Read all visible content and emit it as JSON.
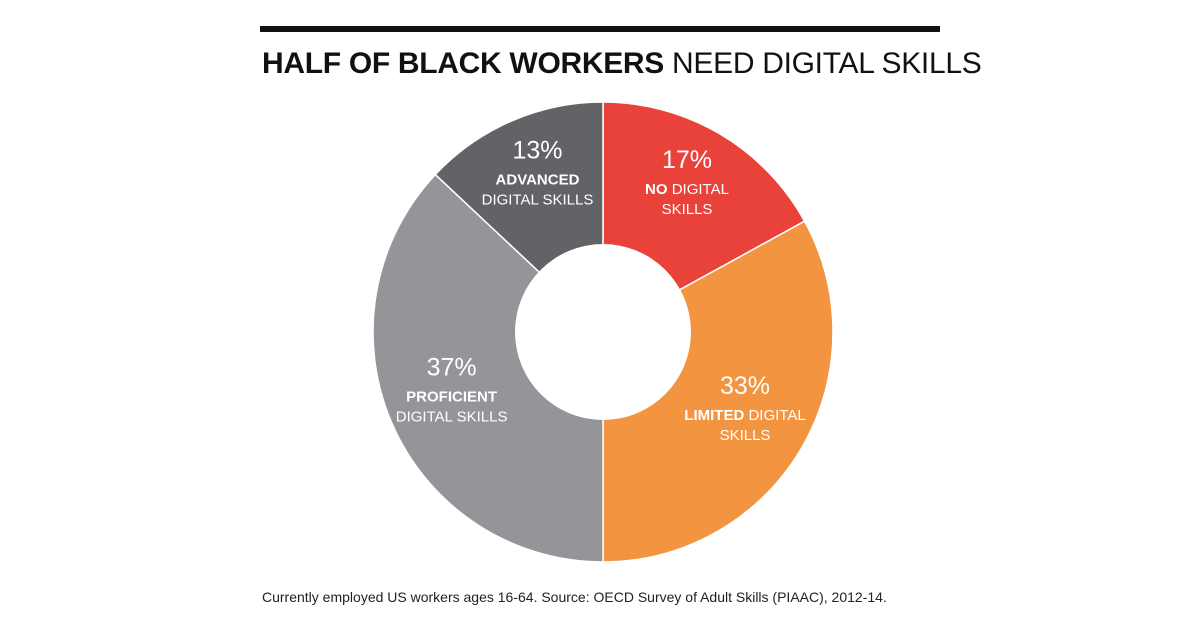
{
  "title": {
    "bold": "HALF OF BLACK WORKERS",
    "regular": "NEED DIGITAL SKILLS"
  },
  "footnote": "Currently employed US workers ages 16-64. Source: OECD Survey of Adult Skills (PIAAC), 2012-14.",
  "colors": {
    "no": "#e8423a",
    "limited": "#f39440",
    "proficient": "#939598",
    "advanced": "#626366",
    "hole": "#ffffff",
    "rule": "#111111"
  },
  "chart_data": {
    "type": "pie",
    "style": "donut",
    "start": "12 o'clock",
    "direction": "clockwise",
    "slices": [
      {
        "value": 17,
        "pct_label": "17%",
        "line1_bold": "NO",
        "line1_regular": " DIGITAL",
        "line2": "SKILLS",
        "color": "#e8423a"
      },
      {
        "value": 33,
        "pct_label": "33%",
        "line1_bold": "LIMITED",
        "line1_regular": " DIGITAL",
        "line2": "SKILLS",
        "color": "#f39440"
      },
      {
        "value": 37,
        "pct_label": "37%",
        "line1_bold": "PROFICIENT",
        "line1_regular": "",
        "line2": "DIGITAL SKILLS",
        "color": "#939598"
      },
      {
        "value": 13,
        "pct_label": "13%",
        "line1_bold": "ADVANCED",
        "line1_regular": "",
        "line2": "DIGITAL SKILLS",
        "color": "#626366"
      }
    ]
  }
}
